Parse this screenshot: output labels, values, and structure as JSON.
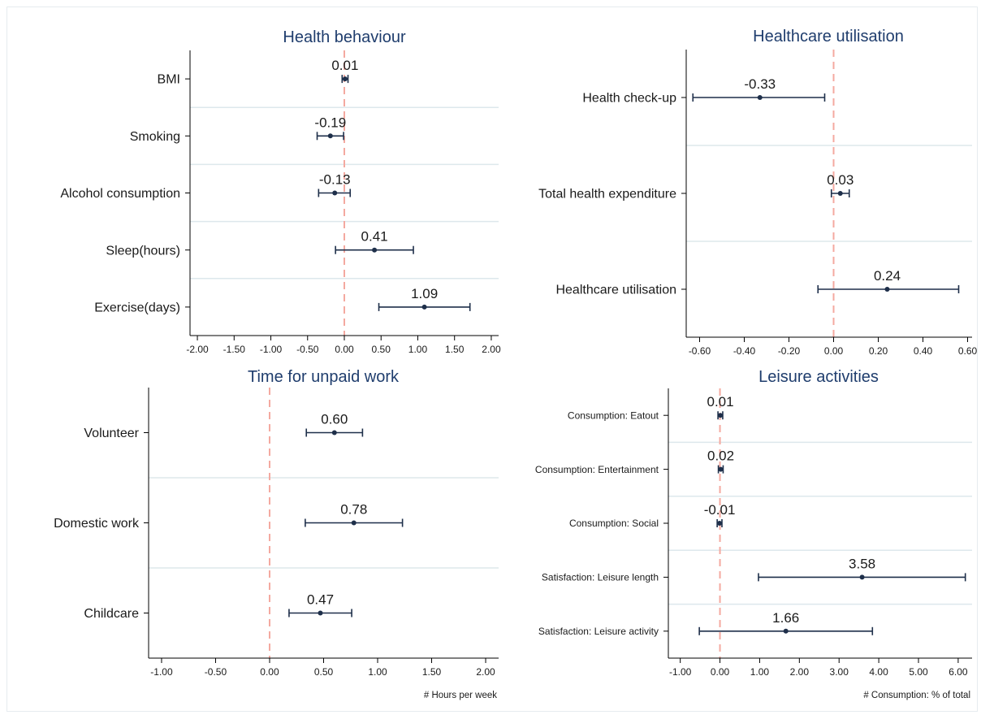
{
  "chart_data": [
    {
      "type": "scatter",
      "subtype": "coefficient-plot",
      "title": "Health behaviour",
      "xlabel": "",
      "xlim": [
        -2.1,
        2.1
      ],
      "xticks": [
        -2,
        -1.5,
        -1,
        -0.5,
        0,
        0.5,
        1,
        1.5,
        2
      ],
      "xtick_labels": [
        "-2.00",
        "-1.50",
        "-1.00",
        "-0.50",
        "0.00",
        "0.50",
        "1.00",
        "1.50",
        "2.00"
      ],
      "reference_line": 0,
      "categories": [
        "BMI",
        "Smoking",
        "Alcohol consumption",
        "Sleep(hours)",
        "Exercise(days)"
      ],
      "estimates": [
        0.01,
        -0.19,
        -0.13,
        0.41,
        1.09
      ],
      "labels": [
        "0.01",
        "-0.19",
        "-0.13",
        "0.41",
        "1.09"
      ],
      "ci_lower": [
        -0.03,
        -0.37,
        -0.35,
        -0.12,
        0.47
      ],
      "ci_upper": [
        0.05,
        -0.01,
        0.08,
        0.94,
        1.71
      ],
      "cat_font": 16
    },
    {
      "type": "scatter",
      "subtype": "coefficient-plot",
      "title": "Healthcare utilisation",
      "xlabel": "",
      "xlim": [
        -0.66,
        0.62
      ],
      "xticks": [
        -0.6,
        -0.4,
        -0.2,
        0,
        0.2,
        0.4,
        0.6
      ],
      "xtick_labels": [
        "-0.60",
        "-0.40",
        "-0.20",
        "0.00",
        "0.20",
        "0.40",
        "0.60"
      ],
      "reference_line": 0,
      "categories": [
        "Health check-up",
        "Total health expenditure",
        "Healthcare utilisation"
      ],
      "estimates": [
        -0.33,
        0.03,
        0.24
      ],
      "labels": [
        "-0.33",
        "0.03",
        "0.24"
      ],
      "ci_lower": [
        -0.63,
        -0.01,
        -0.07
      ],
      "ci_upper": [
        -0.04,
        0.07,
        0.56
      ],
      "cat_font": 16
    },
    {
      "type": "scatter",
      "subtype": "coefficient-plot",
      "title": "Time for unpaid work",
      "xlabel": "# Hours per week",
      "xlim": [
        -1.12,
        2.12
      ],
      "xticks": [
        -1,
        -0.5,
        0,
        0.5,
        1,
        1.5,
        2
      ],
      "xtick_labels": [
        "-1.00",
        "-0.50",
        "0.00",
        "0.50",
        "1.00",
        "1.50",
        "2.00"
      ],
      "reference_line": 0,
      "categories": [
        "Volunteer",
        "Domestic work",
        "Childcare"
      ],
      "estimates": [
        0.6,
        0.78,
        0.47
      ],
      "labels": [
        "0.60",
        "0.78",
        "0.47"
      ],
      "ci_lower": [
        0.34,
        0.33,
        0.18
      ],
      "ci_upper": [
        0.86,
        1.23,
        0.76
      ],
      "cat_font": 16
    },
    {
      "type": "scatter",
      "subtype": "coefficient-plot",
      "title": "Leisure activities",
      "xlabel": "# Consumption: % of total",
      "xlim": [
        -1.3,
        6.35
      ],
      "xticks": [
        -1,
        0,
        1,
        2,
        3,
        4,
        5,
        6
      ],
      "xtick_labels": [
        "-1.00",
        "0.00",
        "1.00",
        "2.00",
        "3.00",
        "4.00",
        "5.00",
        "6.00"
      ],
      "reference_line": 0,
      "categories": [
        "Consumption: Eatout",
        "Consumption: Entertainment",
        "Consumption: Social",
        "Satisfaction: Leisure length",
        "Satisfaction: Leisure activity"
      ],
      "estimates": [
        0.01,
        0.02,
        -0.01,
        3.58,
        1.66
      ],
      "labels": [
        "0.01",
        "0.02",
        "-0.01",
        "3.58",
        "1.66"
      ],
      "ci_lower": [
        -0.05,
        -0.04,
        -0.07,
        0.97,
        -0.52
      ],
      "ci_upper": [
        0.07,
        0.08,
        0.05,
        6.18,
        3.84
      ],
      "cat_font": 12
    }
  ],
  "colors": {
    "title": "#1f3d6d",
    "marker": "#1e2f4a",
    "reference_line": "#f4a9a0",
    "separator": "#dde8ec",
    "axis": "#000000"
  }
}
